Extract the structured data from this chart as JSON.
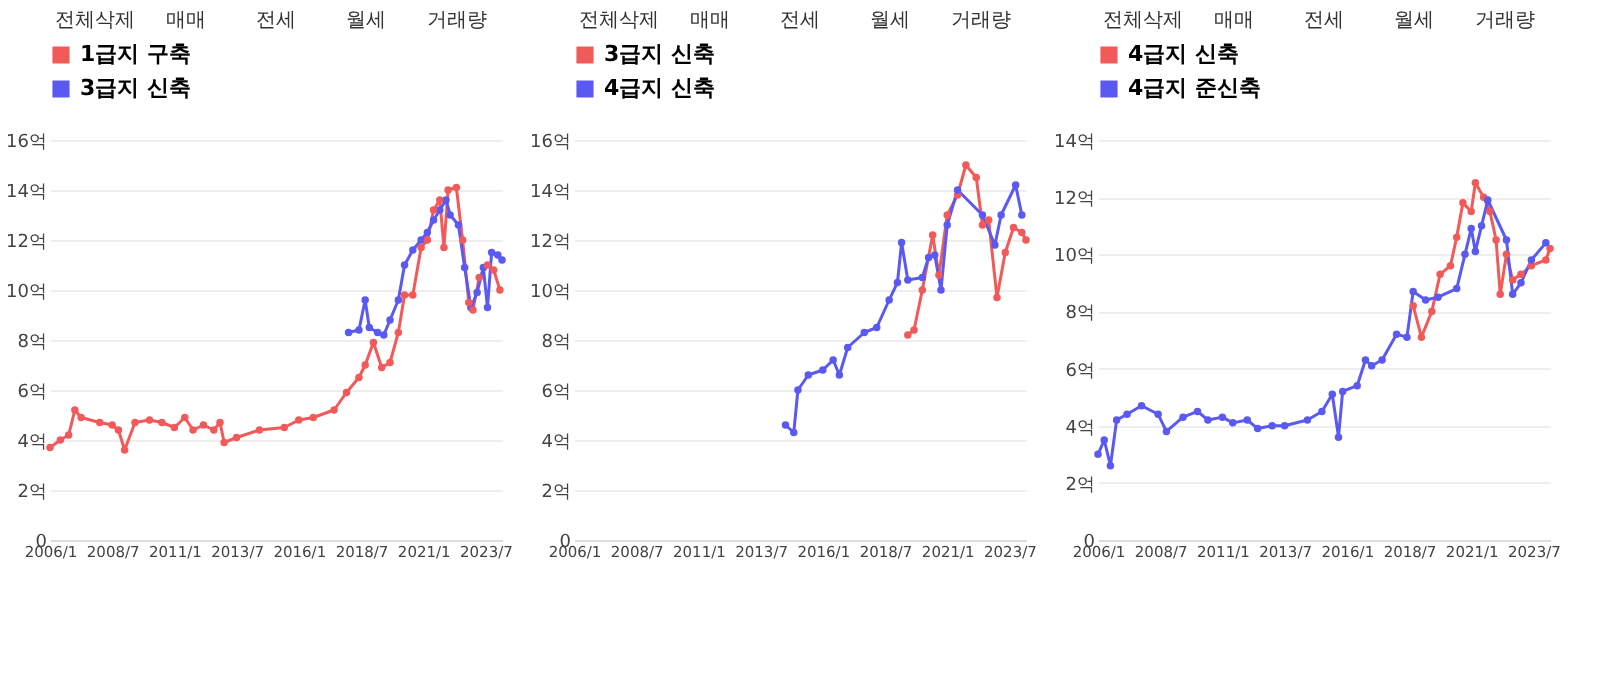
{
  "chart_data": [
    {
      "type": "line",
      "legend": "top",
      "grid": "y",
      "marker": "circle",
      "annotations": [
        "전체삭제",
        "매매",
        "전세",
        "월세",
        "거래량"
      ],
      "xlim": [
        "2006-01",
        "2024-03"
      ],
      "xticks": [
        {
          "value": "2006-01",
          "label": "2006/1"
        },
        {
          "value": "2008-07",
          "label": "2008/7"
        },
        {
          "value": "2011-01",
          "label": "2011/1"
        },
        {
          "value": "2013-07",
          "label": "2013/7"
        },
        {
          "value": "2016-01",
          "label": "2016/1"
        },
        {
          "value": "2018-07",
          "label": "2018/7"
        },
        {
          "value": "2021-01",
          "label": "2021/1"
        },
        {
          "value": "2023-07",
          "label": "2023/7"
        }
      ],
      "ylim": [
        0,
        16
      ],
      "yticks": [
        0,
        {
          "value": 2,
          "label": "2억"
        },
        {
          "value": 4,
          "label": "4억"
        },
        {
          "value": 6,
          "label": "6억"
        },
        {
          "value": 8,
          "label": "8억"
        },
        {
          "value": 10,
          "label": "10억"
        },
        {
          "value": 12,
          "label": "12억"
        },
        {
          "value": 14,
          "label": "14억"
        },
        {
          "value": 16,
          "label": "16억"
        }
      ],
      "series": [
        {
          "name": "1급지 구축",
          "color": "#f25a5a",
          "x": [
            "2006-01",
            "2006-06",
            "2006-10",
            "2007-01",
            "2007-04",
            "2008-01",
            "2008-07",
            "2008-10",
            "2009-01",
            "2009-06",
            "2010-01",
            "2010-07",
            "2011-01",
            "2011-06",
            "2011-10",
            "2012-03",
            "2012-08",
            "2012-11",
            "2013-01",
            "2013-07",
            "2014-06",
            "2015-06",
            "2016-01",
            "2016-08",
            "2017-06",
            "2017-12",
            "2018-06",
            "2018-09",
            "2019-01",
            "2019-05",
            "2019-09",
            "2020-01",
            "2020-04",
            "2020-08",
            "2020-12",
            "2021-03",
            "2021-06",
            "2021-09",
            "2021-11",
            "2022-01",
            "2022-05",
            "2022-08",
            "2022-11",
            "2023-01",
            "2023-04",
            "2023-08",
            "2023-11",
            "2024-02"
          ],
          "values": [
            3.7,
            4.0,
            4.2,
            5.2,
            4.9,
            4.7,
            4.6,
            4.4,
            3.6,
            4.7,
            4.8,
            4.7,
            4.5,
            4.9,
            4.4,
            4.6,
            4.4,
            4.7,
            3.9,
            4.1,
            4.4,
            4.5,
            4.8,
            4.9,
            5.2,
            5.9,
            6.5,
            7.0,
            7.9,
            6.9,
            7.1,
            8.3,
            9.8,
            9.8,
            11.7,
            12.0,
            13.2,
            13.6,
            11.7,
            14.0,
            14.1,
            12.0,
            9.5,
            9.2,
            10.5,
            11.0,
            10.8,
            10.0
          ]
        },
        {
          "name": "3급지 신축",
          "color": "#5a5af2",
          "x": [
            "2018-01",
            "2018-06",
            "2018-09",
            "2018-11",
            "2019-03",
            "2019-06",
            "2019-09",
            "2020-01",
            "2020-04",
            "2020-08",
            "2020-12",
            "2021-03",
            "2021-06",
            "2021-09",
            "2021-12",
            "2022-02",
            "2022-06",
            "2022-09",
            "2022-12",
            "2023-03",
            "2023-06",
            "2023-08",
            "2023-10",
            "2024-01",
            "2024-03"
          ],
          "values": [
            8.3,
            8.4,
            9.6,
            8.5,
            8.3,
            8.2,
            8.8,
            9.6,
            11.0,
            11.6,
            12.0,
            12.3,
            12.8,
            13.2,
            13.6,
            13.0,
            12.6,
            10.9,
            9.3,
            9.9,
            10.9,
            9.3,
            11.5,
            11.4,
            11.2
          ]
        }
      ]
    },
    {
      "type": "line",
      "legend": "top",
      "grid": "y",
      "marker": "circle",
      "annotations": [
        "전체삭제",
        "매매",
        "전세",
        "월세",
        "거래량"
      ],
      "xlim": [
        "2006-01",
        "2024-03"
      ],
      "xticks": [
        {
          "value": "2006-01",
          "label": "2006/1"
        },
        {
          "value": "2008-07",
          "label": "2008/7"
        },
        {
          "value": "2011-01",
          "label": "2011/1"
        },
        {
          "value": "2013-07",
          "label": "2013/7"
        },
        {
          "value": "2016-01",
          "label": "2016/1"
        },
        {
          "value": "2018-07",
          "label": "2018/7"
        },
        {
          "value": "2021-01",
          "label": "2021/1"
        },
        {
          "value": "2023-07",
          "label": "2023/7"
        }
      ],
      "ylim": [
        0,
        16
      ],
      "yticks": [
        0,
        {
          "value": 2,
          "label": "2억"
        },
        {
          "value": 4,
          "label": "4억"
        },
        {
          "value": 6,
          "label": "6억"
        },
        {
          "value": 8,
          "label": "8억"
        },
        {
          "value": 10,
          "label": "10억"
        },
        {
          "value": 12,
          "label": "12억"
        },
        {
          "value": 14,
          "label": "14억"
        },
        {
          "value": 16,
          "label": "16억"
        }
      ],
      "series": [
        {
          "name": "3급지 신축",
          "color": "#f25a5a",
          "x": [
            "2019-06",
            "2019-09",
            "2020-01",
            "2020-06",
            "2020-09",
            "2021-01",
            "2021-06",
            "2021-10",
            "2022-03",
            "2022-06",
            "2022-09",
            "2023-01",
            "2023-05",
            "2023-09",
            "2024-01",
            "2024-03"
          ],
          "values": [
            8.2,
            8.4,
            10.0,
            12.2,
            10.6,
            13.0,
            13.8,
            15.0,
            14.5,
            12.6,
            12.8,
            9.7,
            11.5,
            12.5,
            12.3,
            12.0
          ]
        },
        {
          "name": "4급지 신축",
          "color": "#5a5af2",
          "x": [
            "2014-07",
            "2014-11",
            "2015-01",
            "2015-06",
            "2016-01",
            "2016-06",
            "2016-09",
            "2017-01",
            "2017-09",
            "2018-03",
            "2018-09",
            "2019-01",
            "2019-03",
            "2019-06",
            "2020-01",
            "2020-04",
            "2020-07",
            "2020-10",
            "2021-01",
            "2021-06",
            "2022-06",
            "2022-12",
            "2023-03",
            "2023-10",
            "2024-01"
          ],
          "values": [
            4.6,
            4.3,
            6.0,
            6.6,
            6.8,
            7.2,
            6.6,
            7.7,
            8.3,
            8.5,
            9.6,
            10.3,
            11.9,
            10.4,
            10.5,
            11.3,
            11.4,
            10.0,
            12.6,
            14.0,
            13.0,
            11.8,
            13.0,
            14.2,
            13.0
          ]
        }
      ]
    },
    {
      "type": "line",
      "legend": "top",
      "grid": "y",
      "marker": "circle",
      "annotations": [
        "전체삭제",
        "매매",
        "전세",
        "월세",
        "거래량"
      ],
      "xlim": [
        "2006-01",
        "2024-03"
      ],
      "xticks": [
        {
          "value": "2006-01",
          "label": "2006/1"
        },
        {
          "value": "2008-07",
          "label": "2008/7"
        },
        {
          "value": "2011-01",
          "label": "2011/1"
        },
        {
          "value": "2013-07",
          "label": "2013/7"
        },
        {
          "value": "2016-01",
          "label": "2016/1"
        },
        {
          "value": "2018-07",
          "label": "2018/7"
        },
        {
          "value": "2021-01",
          "label": "2021/1"
        },
        {
          "value": "2023-07",
          "label": "2023/7"
        }
      ],
      "ylim": [
        0,
        14
      ],
      "yticks": [
        0,
        {
          "value": 2,
          "label": "2억"
        },
        {
          "value": 4,
          "label": "4억"
        },
        {
          "value": 6,
          "label": "6억"
        },
        {
          "value": 8,
          "label": "8억"
        },
        {
          "value": 10,
          "label": "10억"
        },
        {
          "value": 12,
          "label": "12억"
        },
        {
          "value": 14,
          "label": "14억"
        }
      ],
      "series": [
        {
          "name": "4급지 신축",
          "color": "#f25a5a",
          "x": [
            "2018-09",
            "2019-01",
            "2019-06",
            "2019-10",
            "2020-03",
            "2020-06",
            "2020-09",
            "2021-01",
            "2021-03",
            "2021-07",
            "2021-10",
            "2022-01",
            "2022-03",
            "2022-06",
            "2022-09",
            "2023-01",
            "2023-06",
            "2024-01",
            "2024-03"
          ],
          "values": [
            8.2,
            7.1,
            8.0,
            9.3,
            9.6,
            10.6,
            11.8,
            11.5,
            12.5,
            12.0,
            11.5,
            10.5,
            8.6,
            10.0,
            9.1,
            9.3,
            9.6,
            9.8,
            10.2
          ]
        },
        {
          "name": "4급지 준신축",
          "color": "#5a5af2",
          "x": [
            "2006-01",
            "2006-04",
            "2006-07",
            "2006-10",
            "2007-03",
            "2007-10",
            "2008-06",
            "2008-10",
            "2009-06",
            "2010-01",
            "2010-06",
            "2011-01",
            "2011-06",
            "2012-01",
            "2012-06",
            "2013-01",
            "2013-07",
            "2014-06",
            "2015-01",
            "2015-06",
            "2015-09",
            "2015-11",
            "2016-06",
            "2016-10",
            "2017-01",
            "2017-06",
            "2018-01",
            "2018-06",
            "2018-09",
            "2019-03",
            "2019-09",
            "2020-06",
            "2020-10",
            "2021-01",
            "2021-03",
            "2021-06",
            "2021-09",
            "2022-06",
            "2022-09",
            "2023-01",
            "2023-06",
            "2024-01"
          ],
          "values": [
            3.0,
            3.5,
            2.6,
            4.2,
            4.4,
            4.7,
            4.4,
            3.8,
            4.3,
            4.5,
            4.2,
            4.3,
            4.1,
            4.2,
            3.9,
            4.0,
            4.0,
            4.2,
            4.5,
            5.1,
            3.6,
            5.2,
            5.4,
            6.3,
            6.1,
            6.3,
            7.2,
            7.1,
            8.7,
            8.4,
            8.5,
            8.8,
            10.0,
            10.9,
            10.1,
            11.0,
            11.9,
            10.5,
            8.6,
            9.0,
            9.8,
            10.4
          ]
        }
      ]
    }
  ]
}
